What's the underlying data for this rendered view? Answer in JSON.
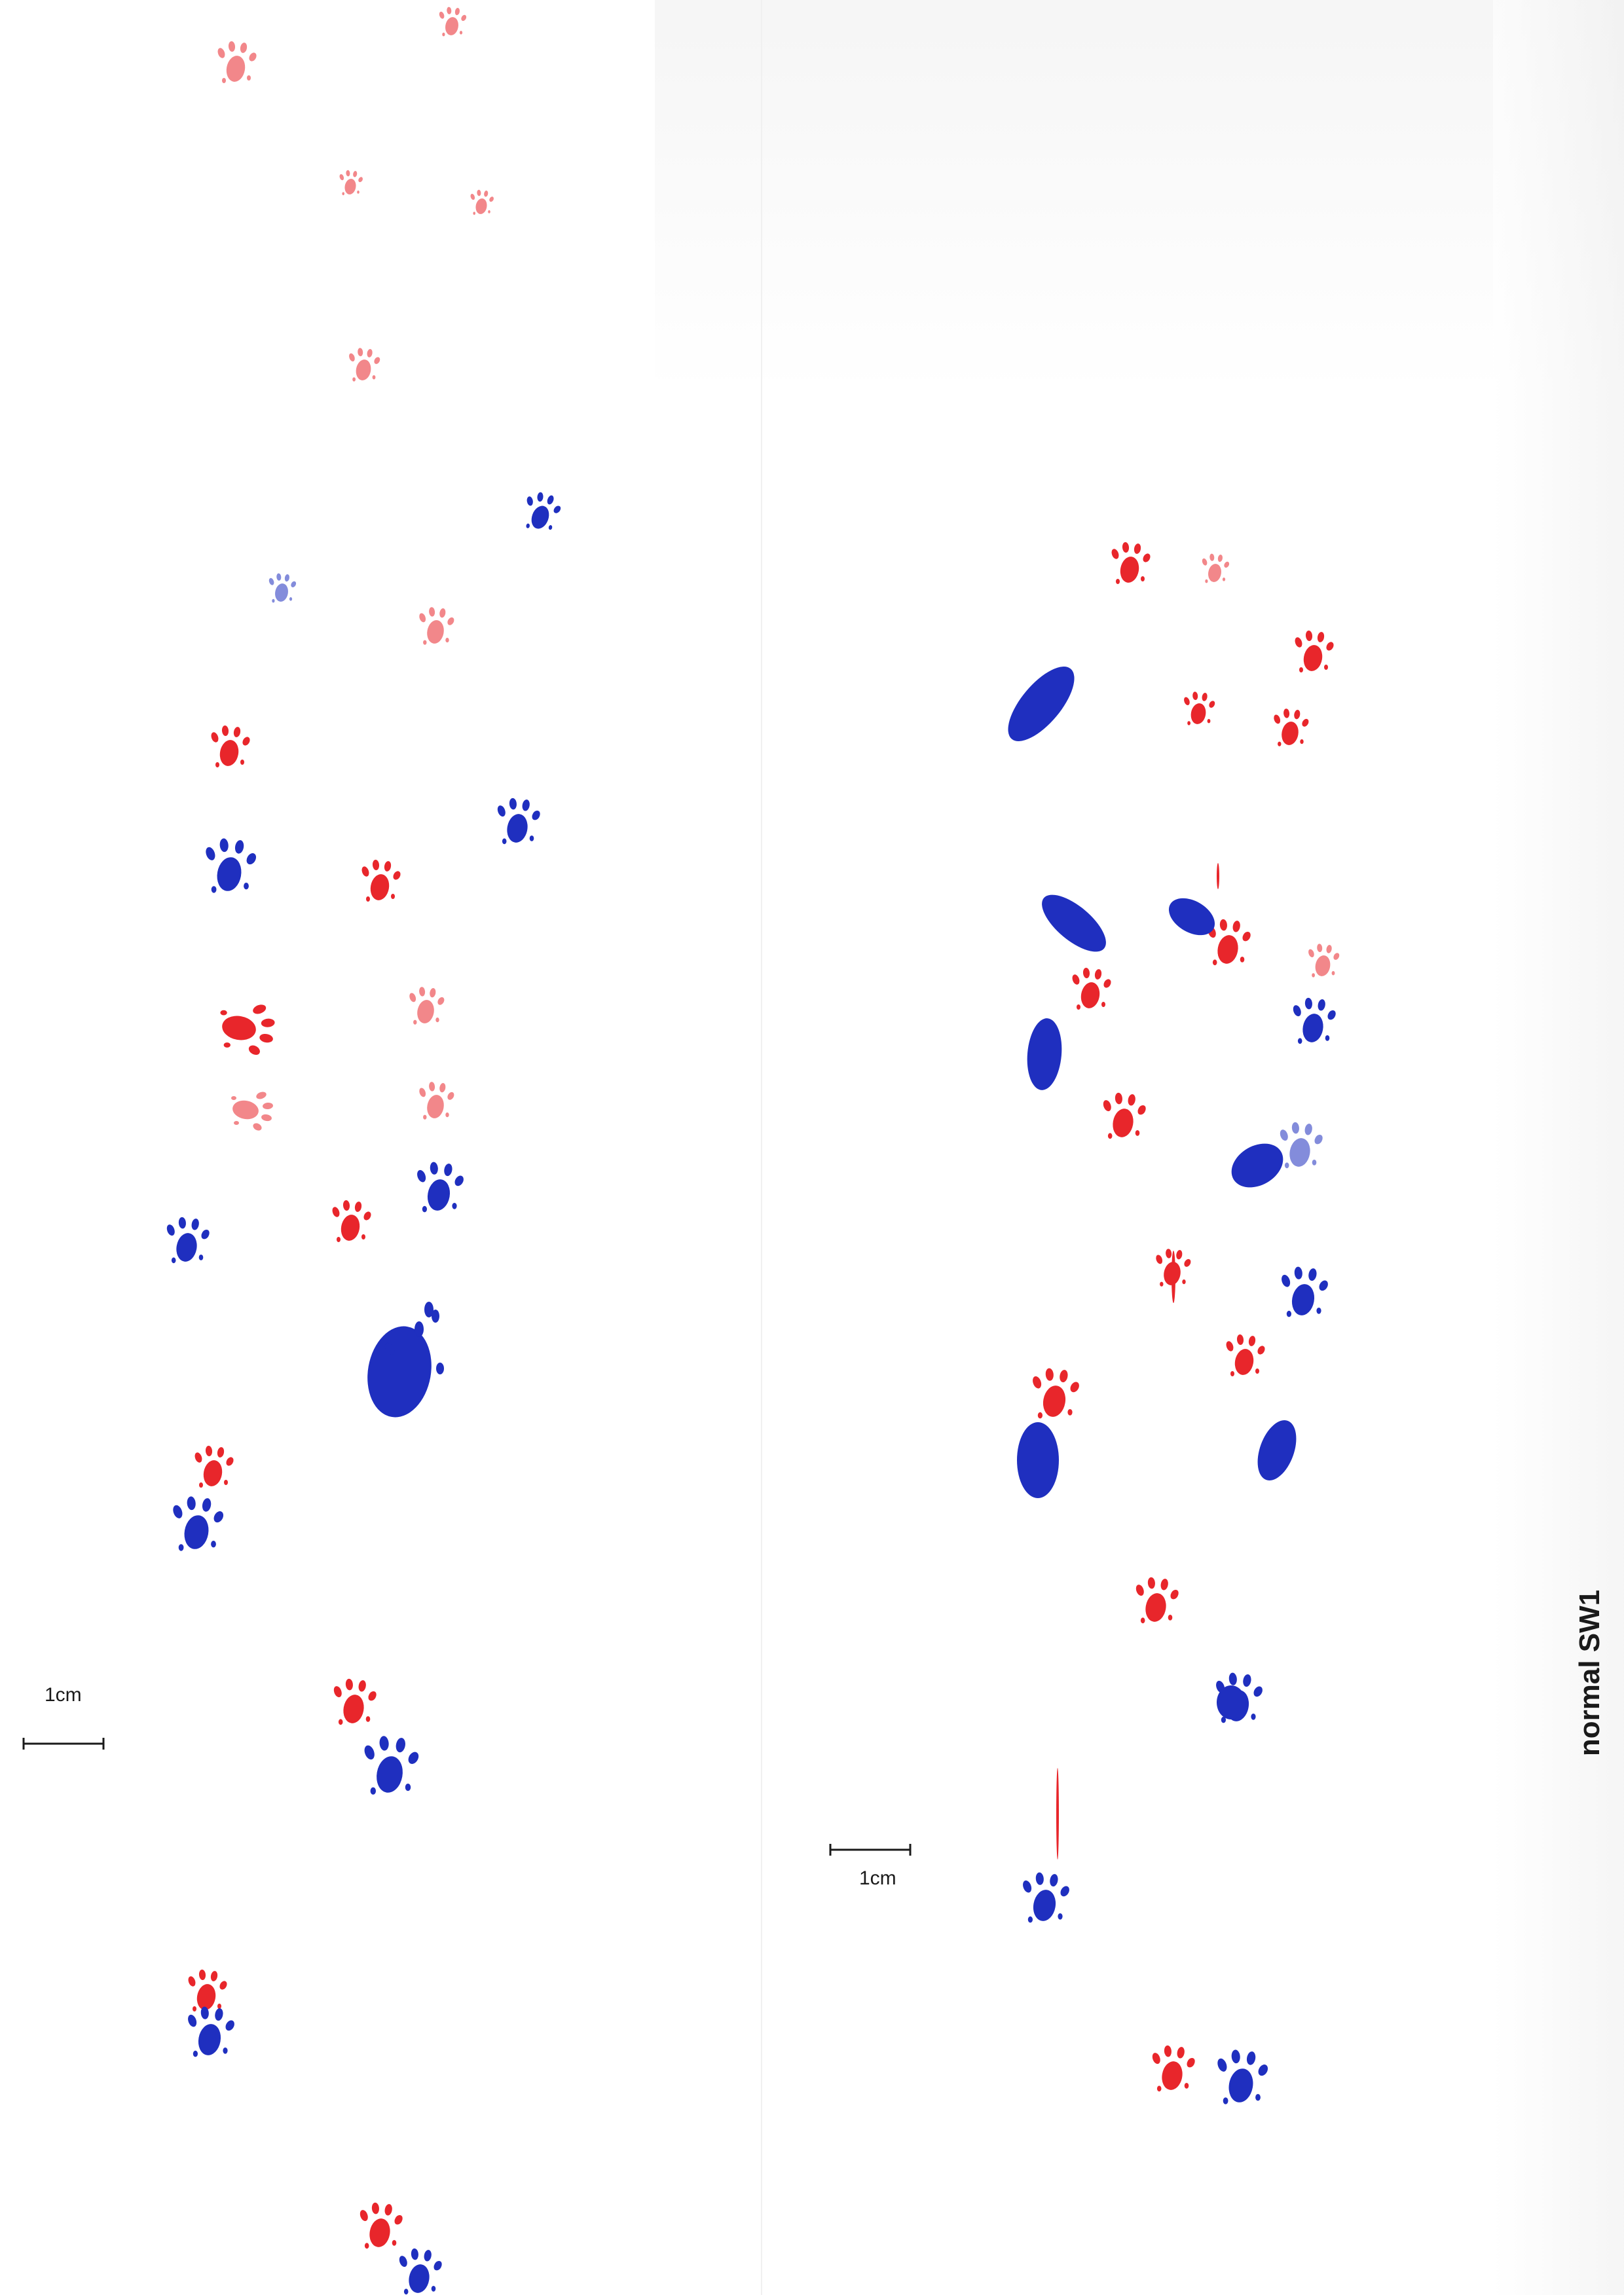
{
  "scale_bars": [
    {
      "label": "1cm"
    },
    {
      "label": "1cm"
    }
  ],
  "note": "normal SW1",
  "colors": {
    "paper": "#ffffff",
    "red_ink": "#e8262b",
    "blue_ink": "#1f2fbf",
    "pen": "#1a1a1a"
  }
}
